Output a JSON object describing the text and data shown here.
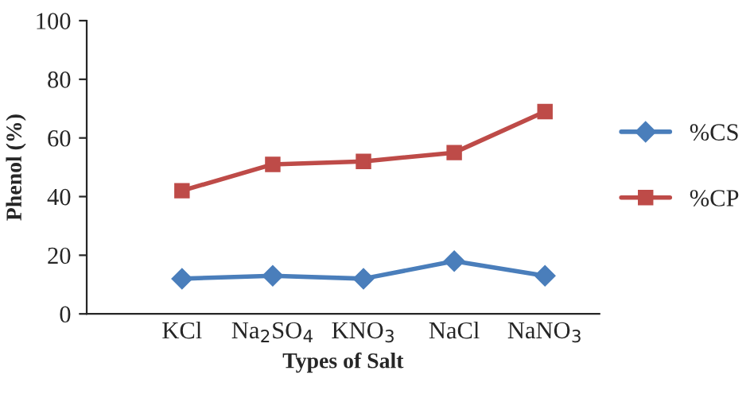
{
  "chart_data": {
    "type": "line",
    "xlabel": "Types of Salt",
    "ylabel": "Phenol (%)",
    "categories": [
      "KCl",
      "Na$_{2}$SO$_{4}$",
      "KNO$_{3}$",
      "NaCl",
      "NaNO$_{3}$"
    ],
    "series": [
      {
        "name": "%CS",
        "color": "#4a7ebb",
        "marker": "diamond",
        "values": [
          12,
          13,
          12,
          18,
          13
        ]
      },
      {
        "name": "%CP",
        "color": "#be4b48",
        "marker": "square",
        "values": [
          42,
          51,
          52,
          55,
          69
        ]
      }
    ],
    "ylim": [
      0,
      100
    ],
    "yticks": [
      0,
      20,
      40,
      60,
      80,
      100
    ],
    "grid": false,
    "legend": "right",
    "line_style": "solid"
  }
}
